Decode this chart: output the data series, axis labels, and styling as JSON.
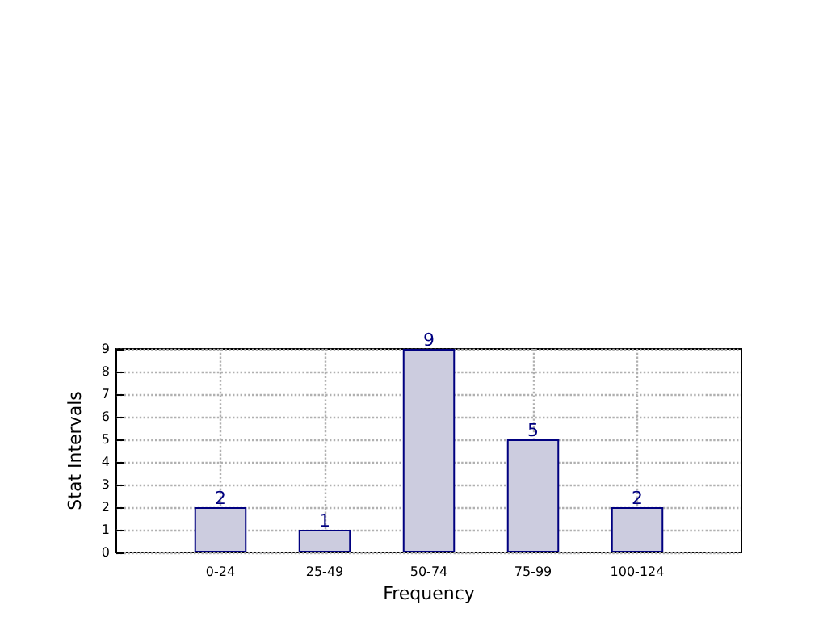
{
  "chart_data": {
    "type": "bar",
    "xlabel": "Frequency",
    "ylabel": "Stat Intervals",
    "categories": [
      "0-24",
      "25-49",
      "50-74",
      "75-99",
      "100-124"
    ],
    "values": [
      2,
      1,
      9,
      5,
      2
    ],
    "color": "#ccccdf",
    "ylim": [
      0,
      9
    ],
    "yticks": [
      0,
      1,
      2,
      3,
      4,
      5,
      6,
      7,
      8,
      9
    ],
    "grid": true,
    "data_labels": true
  }
}
